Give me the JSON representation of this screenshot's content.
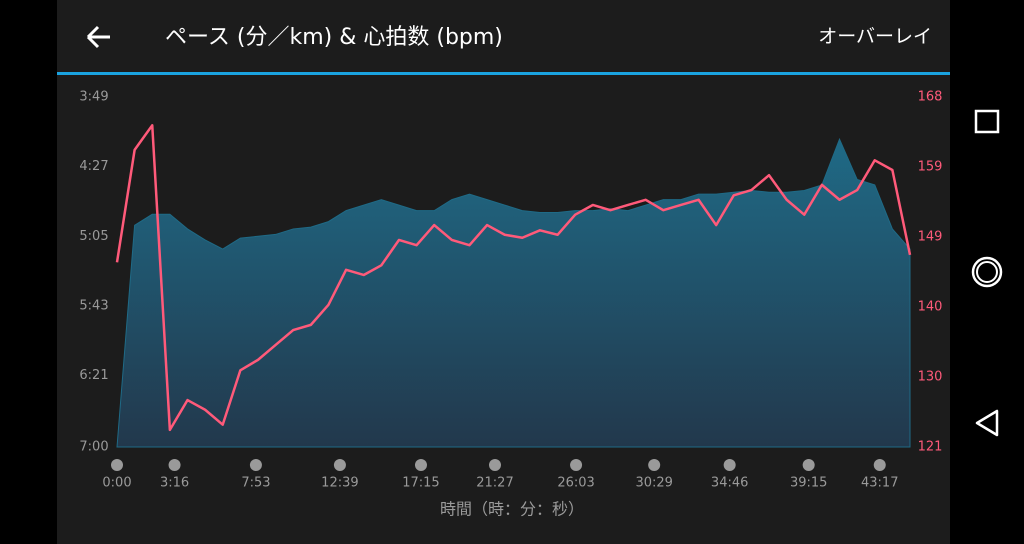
{
  "header": {
    "title": "ペース (分／km) & 心拍数 (bpm)",
    "action": "オーバーレイ"
  },
  "chart_data": {
    "type": "line",
    "x_label": "時間（時：分：秒）",
    "x": [
      0,
      60,
      120,
      180,
      240,
      300,
      360,
      420,
      480,
      540,
      600,
      660,
      720,
      780,
      840,
      900,
      960,
      1020,
      1080,
      1140,
      1200,
      1260,
      1320,
      1380,
      1440,
      1500,
      1560,
      1620,
      1680,
      1740,
      1800,
      1860,
      1920,
      1980,
      2040,
      2100,
      2160,
      2220,
      2280,
      2340,
      2400,
      2460,
      2520,
      2580,
      2640,
      2700
    ],
    "xlim": [
      0,
      2700
    ],
    "xticks": [
      {
        "value": 0,
        "label": "0:00"
      },
      {
        "value": 196,
        "label": "3:16"
      },
      {
        "value": 473,
        "label": "7:53"
      },
      {
        "value": 759,
        "label": "12:39"
      },
      {
        "value": 1035,
        "label": "17:15"
      },
      {
        "value": 1287,
        "label": "21:27"
      },
      {
        "value": 1563,
        "label": "26:03"
      },
      {
        "value": 1829,
        "label": "30:29"
      },
      {
        "value": 2086,
        "label": "34:46"
      },
      {
        "value": 2355,
        "label": "39:15"
      },
      {
        "value": 2597,
        "label": "43:17"
      }
    ],
    "ylim": [
      420,
      229
    ],
    "yticks": [
      {
        "value": 229,
        "label": "3:49"
      },
      {
        "value": 267,
        "label": "4:27"
      },
      {
        "value": 305,
        "label": "5:05"
      },
      {
        "value": 343,
        "label": "5:43"
      },
      {
        "value": 381,
        "label": "6:21"
      },
      {
        "value": 420,
        "label": "7:00"
      }
    ],
    "y2lim": [
      121,
      168
    ],
    "y2ticks": [
      121,
      {
        "value": 130.4,
        "label": "130"
      },
      {
        "value": 139.8,
        "label": "140"
      },
      {
        "value": 149.2,
        "label": "149"
      },
      {
        "value": 158.6,
        "label": "159"
      },
      168
    ],
    "series": [
      {
        "type": "area",
        "color": "#1f6a86",
        "values": [
          420,
          299,
          293,
          293,
          301,
          307,
          312,
          306,
          305,
          304,
          301,
          300,
          297,
          291,
          288,
          285,
          288,
          291,
          291,
          285,
          282,
          285,
          288,
          291,
          292,
          292,
          291,
          291,
          290,
          291,
          288,
          285,
          285,
          282,
          282,
          281,
          280,
          281,
          281,
          280,
          277,
          252,
          274,
          277,
          301,
          312
        ]
      },
      {
        "type": "line",
        "axis": "y2",
        "color": "#ff5a7a",
        "values": [
          145.8,
          160.9,
          164.2,
          123.3,
          127.3,
          126,
          124,
          131.3,
          132.7,
          134.7,
          136.7,
          137.4,
          140.1,
          144.8,
          144.1,
          145.4,
          148.8,
          148.1,
          150.8,
          148.8,
          148.1,
          150.8,
          149.5,
          149.1,
          150.1,
          149.5,
          152.2,
          153.5,
          152.8,
          153.5,
          154.2,
          152.8,
          153.5,
          154.2,
          150.8,
          154.8,
          155.5,
          157.5,
          154.2,
          152.2,
          156.2,
          154.2,
          155.5,
          159.5,
          158.2,
          146.8
        ]
      }
    ]
  }
}
